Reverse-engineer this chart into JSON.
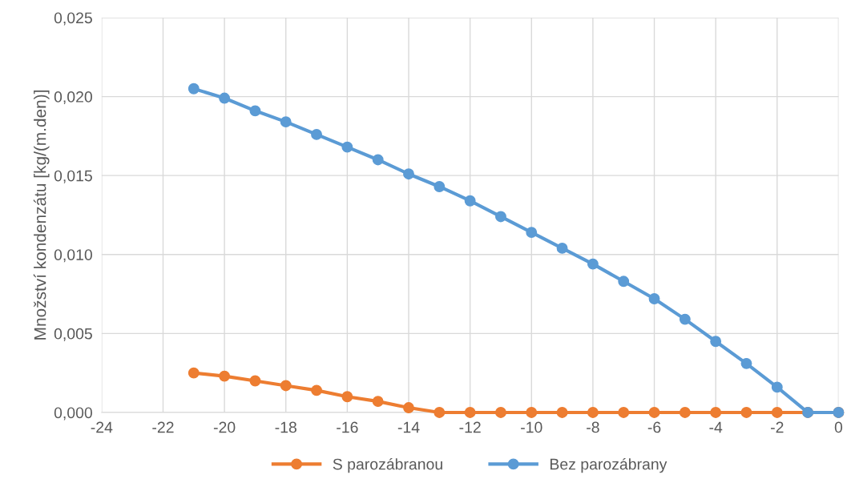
{
  "chart_data": {
    "type": "line",
    "ylabel": "Množství kondenzátu [kg/(m.den)]",
    "x": [
      -21,
      -20,
      -19,
      -18,
      -17,
      -16,
      -15,
      -14,
      -13,
      -12,
      -11,
      -10,
      -9,
      -8,
      -7,
      -6,
      -5,
      -4,
      -3,
      -2,
      -1,
      0
    ],
    "series": [
      {
        "name": "S parozábranou",
        "color": "#ed7d31",
        "values": [
          0.0025,
          0.0023,
          0.002,
          0.0017,
          0.0014,
          0.001,
          0.0007,
          0.0003,
          0,
          0,
          0,
          0,
          0,
          0,
          0,
          0,
          0,
          0,
          0,
          0,
          0,
          0
        ]
      },
      {
        "name": "Bez parozábrany",
        "color": "#5b9bd5",
        "values": [
          0.0205,
          0.0199,
          0.0191,
          0.0184,
          0.0176,
          0.0168,
          0.016,
          0.0151,
          0.0143,
          0.0134,
          0.0124,
          0.0114,
          0.0104,
          0.0094,
          0.0083,
          0.0072,
          0.0059,
          0.0045,
          0.0031,
          0.0016,
          0,
          0
        ]
      }
    ],
    "xlim": [
      -24,
      0
    ],
    "xticks": [
      -24,
      -22,
      -20,
      -18,
      -16,
      -14,
      -12,
      -10,
      -8,
      -6,
      -4,
      -2,
      0
    ],
    "ylim": [
      0,
      0.025
    ],
    "yticks": [
      {
        "value": 0,
        "label": "0,000"
      },
      {
        "value": 0.005,
        "label": "0,005"
      },
      {
        "value": 0.01,
        "label": "0,010"
      },
      {
        "value": 0.015,
        "label": "0,015"
      },
      {
        "value": 0.02,
        "label": "0,020"
      },
      {
        "value": 0.025,
        "label": "0,025"
      }
    ],
    "grid": true,
    "legend": "bottom",
    "marker": "circle",
    "line_style": "solid"
  }
}
